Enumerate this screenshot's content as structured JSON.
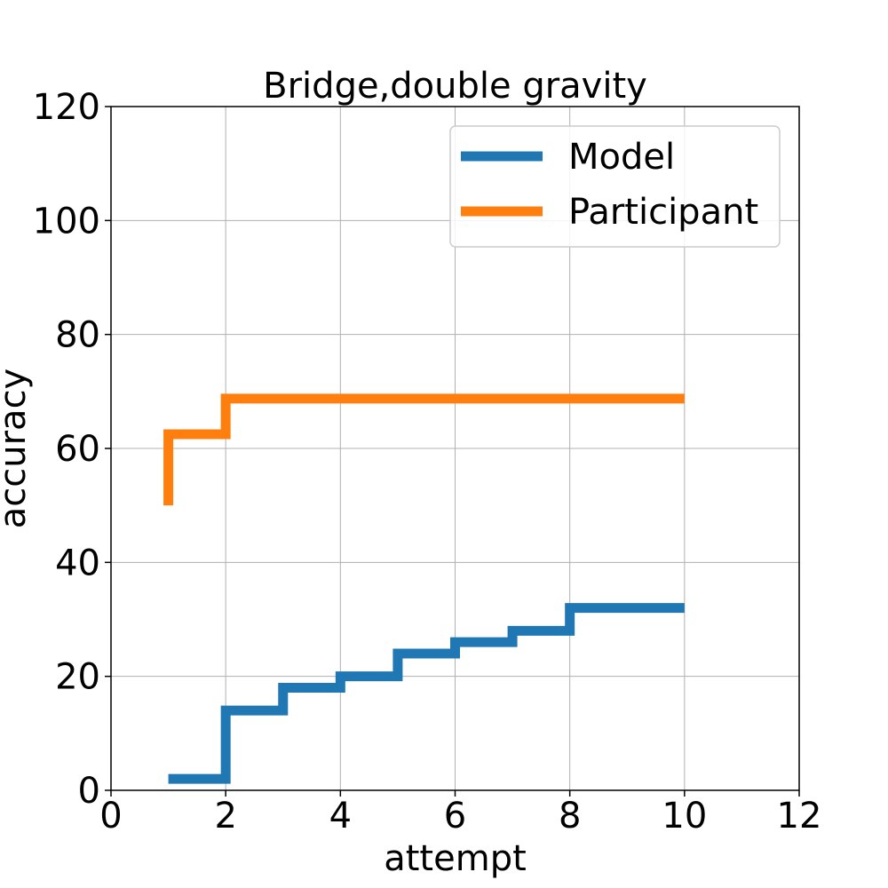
{
  "chart_data": {
    "type": "line",
    "step": "post",
    "title": "Bridge,double gravity",
    "xlabel": "attempt",
    "ylabel": "accuracy",
    "xlim": [
      0,
      12
    ],
    "ylim": [
      0,
      120
    ],
    "xticks": [
      0,
      2,
      4,
      6,
      8,
      10,
      12
    ],
    "yticks": [
      0,
      20,
      40,
      60,
      80,
      100,
      120
    ],
    "grid": true,
    "legend_position": "top-right",
    "series": [
      {
        "name": "Model",
        "color": "#1f77b4",
        "x": [
          1,
          2,
          3,
          4,
          5,
          6,
          7,
          8,
          9,
          10
        ],
        "y": [
          2,
          14,
          18,
          20,
          24,
          26,
          28,
          32,
          32,
          32
        ]
      },
      {
        "name": "Participant",
        "color": "#ff7f0e",
        "x": [
          1,
          2,
          3,
          4,
          5,
          6,
          7,
          8,
          9,
          10
        ],
        "y": [
          62.5,
          68.75,
          68.75,
          68.75,
          68.75,
          68.75,
          68.75,
          68.75,
          68.75,
          68.75
        ],
        "start_y": 50
      }
    ]
  }
}
